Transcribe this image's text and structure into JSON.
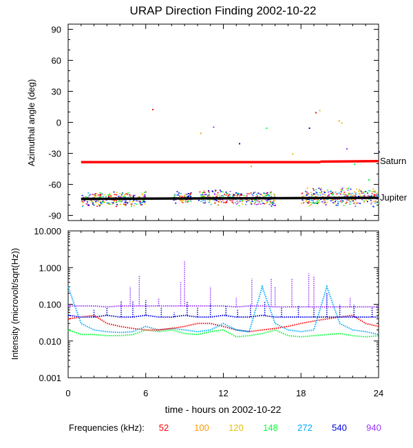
{
  "chart_data": [
    {
      "type": "scatter",
      "title": "URAP Direction Finding  2002-10-22",
      "ylabel": "Azimuthal angle (deg)",
      "ylim": [
        -95,
        95
      ],
      "xlim": [
        0,
        24
      ],
      "yticks": [
        "90",
        "60",
        "30",
        "0",
        "-30",
        "-60",
        "-90"
      ],
      "ytick_values": [
        90,
        60,
        30,
        0,
        -30,
        -60,
        -90
      ],
      "reference_lines": [
        {
          "name": "Saturn",
          "color": "#ff0000",
          "segments": [
            [
              1.0,
              -38.5,
              19.5,
              -38.5
            ],
            [
              19.5,
              -38.0,
              24.0,
              -37.5
            ]
          ]
        },
        {
          "name": "Jupiter",
          "color": "#000000",
          "segments": [
            [
              1.0,
              -74.0,
              24.0,
              -73.0
            ]
          ]
        }
      ],
      "point_clusters": [
        {
          "x": [
            1,
            6
          ],
          "y_center": -74,
          "y_spread": 8
        },
        {
          "x": [
            8,
            9.5
          ],
          "y_center": -72,
          "y_spread": 6
        },
        {
          "x": [
            10,
            13
          ],
          "y_center": -72,
          "y_spread": 8
        },
        {
          "x": [
            13,
            16
          ],
          "y_center": -74,
          "y_spread": 8
        },
        {
          "x": [
            18,
            24
          ],
          "y_center": -72,
          "y_spread": 10
        }
      ],
      "scattered_points": [
        [
          6.5,
          13
        ],
        [
          10.2,
          -10
        ],
        [
          11.2,
          -4
        ],
        [
          12.9,
          -38
        ],
        [
          13.2,
          -20
        ],
        [
          14.1,
          -42
        ],
        [
          15.3,
          -5
        ],
        [
          17.3,
          -30
        ],
        [
          18.6,
          -5
        ],
        [
          19.1,
          10
        ],
        [
          19.4,
          12
        ],
        [
          21.1,
          0
        ],
        [
          20.9,
          2
        ],
        [
          21.5,
          -25
        ],
        [
          22.1,
          -40
        ],
        [
          23.2,
          -55
        ],
        [
          24.0,
          -28
        ]
      ]
    },
    {
      "type": "line",
      "ylabel": "Intensity (microvolt/sqrt(Hz))",
      "ylim": [
        0.001,
        10.0
      ],
      "yscale": "log",
      "yticks": [
        "10.000",
        "1.000",
        "0.100",
        "0.010",
        "0.001"
      ],
      "ytick_values": [
        10,
        1,
        0.1,
        0.01,
        0.001
      ],
      "xlim": [
        0,
        24
      ],
      "xticks": [
        "0",
        "6",
        "12",
        "18",
        "24"
      ],
      "xtick_values": [
        0,
        6,
        12,
        18,
        24
      ],
      "xlabel": "time - hours on 2002-10-22",
      "legend_label": "Frequencies (kHz):",
      "series": [
        {
          "name": "52",
          "color": "#ff0000",
          "x": [
            0,
            1,
            2,
            3,
            4,
            5,
            6,
            7,
            8,
            9,
            10,
            11,
            12,
            13,
            14,
            15,
            16,
            17,
            18,
            19,
            20,
            21,
            22,
            23,
            24
          ],
          "values": [
            0.04,
            0.045,
            0.05,
            0.03,
            0.025,
            0.022,
            0.02,
            0.02,
            0.022,
            0.025,
            0.03,
            0.03,
            0.025,
            0.02,
            0.018,
            0.02,
            0.022,
            0.025,
            0.03,
            0.035,
            0.04,
            0.045,
            0.05,
            0.03,
            0.025
          ]
        },
        {
          "name": "100",
          "color": "#ff9900",
          "x": [],
          "values": []
        },
        {
          "name": "120",
          "color": "#e6c000",
          "x": [],
          "values": []
        },
        {
          "name": "148",
          "color": "#00ff33",
          "x": [
            0,
            1,
            2,
            3,
            4,
            5,
            6,
            7,
            8,
            9,
            10,
            11,
            12,
            13,
            14,
            15,
            16,
            17,
            18,
            19,
            20,
            21,
            22,
            23,
            24
          ],
          "values": [
            0.02,
            0.015,
            0.015,
            0.014,
            0.014,
            0.015,
            0.02,
            0.018,
            0.02,
            0.016,
            0.015,
            0.018,
            0.02,
            0.013,
            0.014,
            0.016,
            0.02,
            0.014,
            0.013,
            0.014,
            0.015,
            0.016,
            0.014,
            0.013,
            0.014
          ]
        },
        {
          "name": "272",
          "color": "#00aaff",
          "x": [
            0,
            1,
            2,
            3,
            4,
            5,
            6,
            7,
            8,
            9,
            10,
            11,
            12,
            13,
            14,
            15,
            16,
            17,
            18,
            19,
            20,
            21,
            22,
            23,
            24
          ],
          "values": [
            0.3,
            0.03,
            0.02,
            0.018,
            0.017,
            0.018,
            0.025,
            0.02,
            0.022,
            0.02,
            0.018,
            0.02,
            0.03,
            0.02,
            0.018,
            0.3,
            0.03,
            0.02,
            0.018,
            0.02,
            0.3,
            0.03,
            0.02,
            0.018,
            0.015
          ]
        },
        {
          "name": "540",
          "color": "#0000dd",
          "x": [
            0,
            1,
            2,
            3,
            4,
            5,
            6,
            7,
            8,
            9,
            10,
            11,
            12,
            13,
            14,
            15,
            16,
            17,
            18,
            19,
            20,
            21,
            22,
            23,
            24
          ],
          "values": [
            0.05,
            0.045,
            0.045,
            0.05,
            0.045,
            0.045,
            0.05,
            0.045,
            0.045,
            0.05,
            0.045,
            0.045,
            0.05,
            0.045,
            0.045,
            0.05,
            0.045,
            0.045,
            0.045,
            0.045,
            0.045,
            0.045,
            0.045,
            0.045,
            0.045
          ]
        },
        {
          "name": "940",
          "color": "#9933ff",
          "x": [
            0,
            1,
            2,
            3,
            4,
            5,
            6,
            7,
            8,
            9,
            10,
            11,
            12,
            13,
            14,
            15,
            16,
            17,
            18,
            19,
            20,
            21,
            22,
            23,
            24
          ],
          "values": [
            0.09,
            0.09,
            0.09,
            0.085,
            0.09,
            0.09,
            0.09,
            0.09,
            0.09,
            0.09,
            0.09,
            0.09,
            0.09,
            0.085,
            0.09,
            0.09,
            0.085,
            0.085,
            0.085,
            0.085,
            0.085,
            0.085,
            0.085,
            0.085,
            0.085
          ]
        }
      ],
      "spikes": [
        {
          "series": "940",
          "x": [
            4.8,
            5.5,
            7.0,
            8.7,
            9.0,
            11.0,
            13.0,
            14.2,
            15.7,
            16.0,
            17.3,
            18.6,
            19.0,
            20.0,
            21.8
          ],
          "values": [
            0.3,
            0.6,
            0.15,
            0.4,
            1.5,
            0.3,
            0.15,
            0.5,
            0.5,
            0.3,
            0.5,
            0.7,
            0.6,
            0.2,
            0.15
          ]
        },
        {
          "series": "540",
          "x": [
            2.0,
            3.0,
            4.1,
            5.0,
            6.0,
            7.2,
            8.2,
            9.2,
            10.0,
            11.0,
            12.2,
            13.1,
            14.1,
            15.2,
            16.5,
            17.8,
            19.0,
            20.0,
            21.0,
            22.1,
            23.5
          ],
          "values": [
            0.07,
            0.08,
            0.12,
            0.12,
            0.13,
            0.08,
            0.06,
            0.12,
            0.08,
            0.1,
            0.09,
            0.07,
            0.1,
            0.12,
            0.08,
            0.09,
            0.08,
            0.2,
            0.1,
            0.1,
            0.08
          ]
        }
      ]
    }
  ]
}
